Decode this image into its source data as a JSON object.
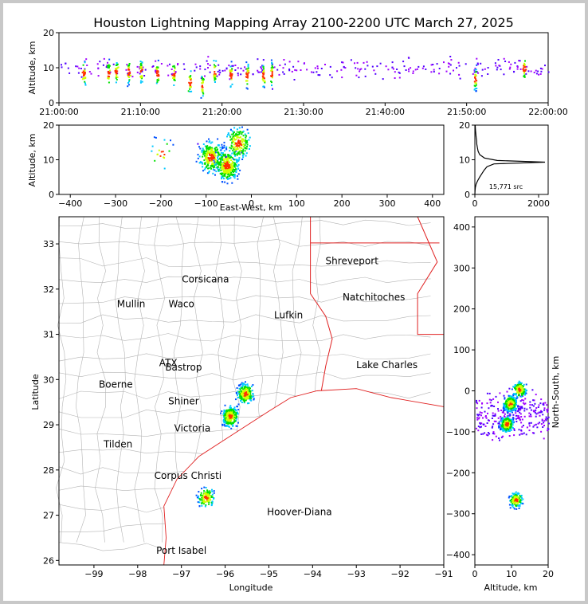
{
  "title": "Houston Lightning Mapping Array 2100-2200 UTC March 27, 2025",
  "colors": {
    "county": "#b4b4b4",
    "state": "#e02020",
    "coast": "#e02020",
    "src_hi": "#ff3000",
    "src_mid": "#00c8ff",
    "src_lo": "#a000ff"
  },
  "chart_data": [
    {
      "id": "time-altitude",
      "type": "scatter",
      "ylabel": "Altitude, km",
      "xlim_labels": [
        "21:00:00",
        "22:00:00"
      ],
      "ylim": [
        0,
        20
      ],
      "x_ticks": [
        "21:00:00",
        "21:10:00",
        "21:20:00",
        "21:30:00",
        "21:40:00",
        "21:50:00",
        "22:00:00"
      ],
      "y_ticks": [
        "0",
        "10",
        "20"
      ],
      "bursts": [
        {
          "t": 3,
          "alt": 8.5
        },
        {
          "t": 6,
          "alt": 8.5
        },
        {
          "t": 7,
          "alt": 9
        },
        {
          "t": 8.5,
          "alt": 9
        },
        {
          "t": 10,
          "alt": 9
        },
        {
          "t": 12,
          "alt": 8.5
        },
        {
          "t": 14,
          "alt": 8.5
        },
        {
          "t": 16,
          "alt": 6
        },
        {
          "t": 17.5,
          "alt": 5
        },
        {
          "t": 19,
          "alt": 9
        },
        {
          "t": 21,
          "alt": 8
        },
        {
          "t": 23,
          "alt": 8
        },
        {
          "t": 25,
          "alt": 8
        },
        {
          "t": 26,
          "alt": 8.5
        },
        {
          "t": 51,
          "alt": 7
        },
        {
          "t": 57,
          "alt": 10
        }
      ]
    },
    {
      "id": "ew-altitude",
      "type": "scatter",
      "xlabel": "East-West, km",
      "ylabel": "Altitude, km",
      "xlim": [
        -425,
        425
      ],
      "ylim": [
        0,
        20
      ],
      "x_ticks": [
        "−400",
        "−300",
        "−200",
        "−100",
        "0",
        "100",
        "200",
        "300",
        "400"
      ],
      "y_ticks": [
        "0",
        "10",
        "20"
      ],
      "clusters": [
        {
          "x": -90,
          "alt": 11,
          "n": 260
        },
        {
          "x": -55,
          "alt": 8.5,
          "n": 320
        },
        {
          "x": -30,
          "alt": 15,
          "n": 180
        },
        {
          "x": -200,
          "alt": 12,
          "n": 20
        }
      ]
    },
    {
      "id": "altitude-histogram",
      "type": "line",
      "xlim": [
        0,
        2300
      ],
      "ylim": [
        0,
        20
      ],
      "x_ticks": [
        "0",
        "2000"
      ],
      "y_ticks": [
        "0",
        "10",
        "20"
      ],
      "annotation": "15,771 src",
      "profile": [
        [
          0,
          0
        ],
        [
          5,
          1
        ],
        [
          15,
          2
        ],
        [
          40,
          3
        ],
        [
          90,
          4
        ],
        [
          150,
          5
        ],
        [
          220,
          6
        ],
        [
          290,
          7
        ],
        [
          380,
          8
        ],
        [
          600,
          8.8
        ],
        [
          2200,
          9.3
        ],
        [
          700,
          9.8
        ],
        [
          300,
          10.5
        ],
        [
          150,
          11.5
        ],
        [
          100,
          12.5
        ],
        [
          80,
          13.5
        ],
        [
          60,
          14.5
        ],
        [
          55,
          15.5
        ],
        [
          40,
          16.5
        ],
        [
          30,
          17.5
        ],
        [
          20,
          18.5
        ],
        [
          10,
          20
        ]
      ]
    },
    {
      "id": "plan-view",
      "type": "scatter",
      "xlabel": "Longitude",
      "ylabel": "Latitude",
      "xlim": [
        -99.8,
        -91
      ],
      "ylim": [
        25.9,
        33.6
      ],
      "x_ticks": [
        "−99",
        "−98",
        "−97",
        "−96",
        "−95",
        "−94",
        "−93",
        "−92",
        "−91"
      ],
      "y_ticks": [
        "26",
        "27",
        "28",
        "29",
        "30",
        "31",
        "32",
        "33"
      ],
      "clusters": [
        {
          "lon": -95.9,
          "lat": 29.2,
          "n": 260
        },
        {
          "lon": -95.55,
          "lat": 29.7,
          "n": 200
        },
        {
          "lon": -96.45,
          "lat": 27.4,
          "n": 120
        }
      ],
      "cities": [
        {
          "name": "Shreveport",
          "lon": -93.1,
          "lat": 32.55,
          "color": "#000000"
        },
        {
          "name": "Corsicana",
          "lon": -96.45,
          "lat": 32.15,
          "color": "#000000"
        },
        {
          "name": "Natchitoches",
          "lon": -92.6,
          "lat": 31.75,
          "color": "#000000"
        },
        {
          "name": "Mullin",
          "lon": -98.15,
          "lat": 31.6,
          "color": "#f08040"
        },
        {
          "name": "Waco",
          "lon": -97.0,
          "lat": 31.6,
          "color": "#000000"
        },
        {
          "name": "Lufkin",
          "lon": -94.55,
          "lat": 31.35,
          "color": "#000000"
        },
        {
          "name": "Lake Charles",
          "lon": -92.3,
          "lat": 30.25,
          "color": "#000000"
        },
        {
          "name": "ATX",
          "lon": -97.3,
          "lat": 30.3,
          "color": "#f08040"
        },
        {
          "name": "Bastrop",
          "lon": -96.95,
          "lat": 30.2,
          "color": "#000000"
        },
        {
          "name": "Boerne",
          "lon": -98.5,
          "lat": 29.82,
          "color": "#000000"
        },
        {
          "name": "Shiner",
          "lon": -96.95,
          "lat": 29.45,
          "color": "#000000"
        },
        {
          "name": "Victoria",
          "lon": -96.75,
          "lat": 28.85,
          "color": "#000000"
        },
        {
          "name": "Tilden",
          "lon": -98.45,
          "lat": 28.5,
          "color": "#000000"
        },
        {
          "name": "Corpus Christi",
          "lon": -96.85,
          "lat": 27.8,
          "color": "#000000"
        },
        {
          "name": "Hoover-Diana",
          "lon": -94.3,
          "lat": 27.0,
          "color": "#2030e0"
        },
        {
          "name": "Port Isabel",
          "lon": -97.0,
          "lat": 26.15,
          "color": "#000000"
        }
      ]
    },
    {
      "id": "altitude-ns",
      "type": "scatter",
      "xlabel": "Altitude, km",
      "ylabel": "North-South, km",
      "xlim": [
        0,
        20
      ],
      "ylim": [
        -425,
        425
      ],
      "x_ticks": [
        "0",
        "10",
        "20"
      ],
      "y_ticks": [
        "−400",
        "−300",
        "−200",
        "−100",
        "0",
        "100",
        "200",
        "300",
        "400"
      ],
      "clusters": [
        {
          "alt": 8.5,
          "ns": -80,
          "n": 240
        },
        {
          "alt": 9.5,
          "ns": -30,
          "n": 260
        },
        {
          "alt": 12,
          "ns": 5,
          "n": 150
        },
        {
          "alt": 11,
          "ns": -265,
          "n": 140
        }
      ]
    }
  ]
}
